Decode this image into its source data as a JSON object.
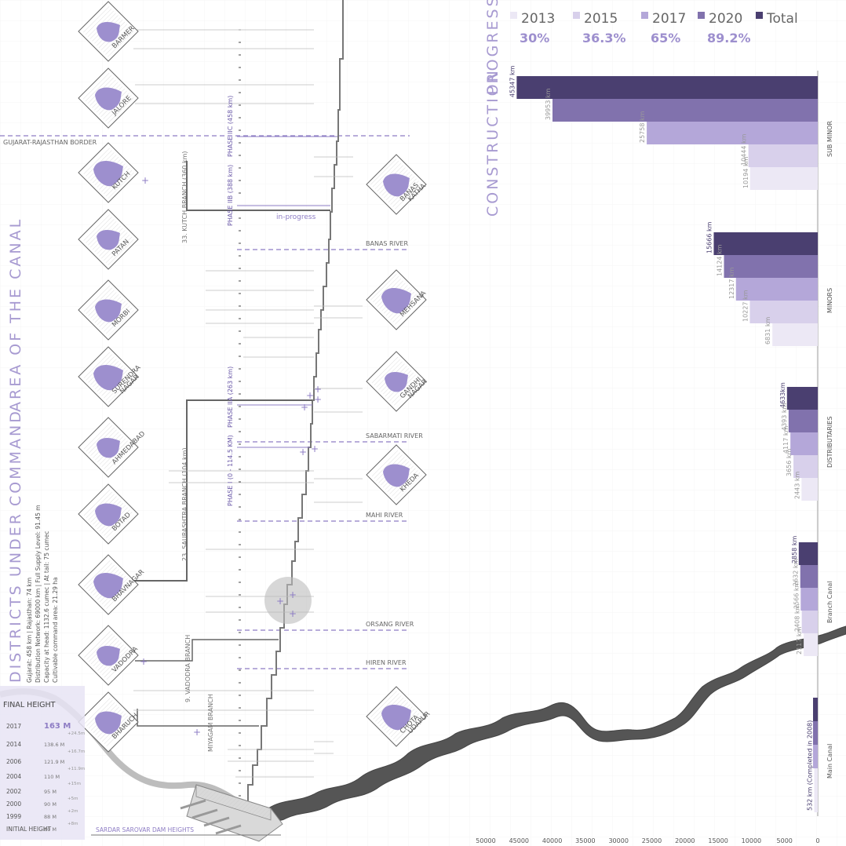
{
  "titles": {
    "command_area": [
      "DISTRICTS",
      "UNDER",
      "COMMAND",
      "AREA OF THE CANAL"
    ],
    "construction": [
      "CONSTRUCTION",
      "PROGRESS"
    ]
  },
  "canal_facts": [
    "Gujarat: 458 km | Rajasthan: 74 km",
    "Distribution Network: 69000 km | Full Supply Level: 91.45 m",
    "Capacity at head: 1132.6 cumec | At tail: 75 cumec",
    "Cultivable command area: 21.29 ha"
  ],
  "legend": [
    {
      "label": "2013",
      "percent": "30%",
      "color": "#ece8f5"
    },
    {
      "label": "2015",
      "percent": "36.3%",
      "color": "#d8d0eb"
    },
    {
      "label": "2017",
      "percent": "65%",
      "color": "#b4a7d9"
    },
    {
      "label": "2020",
      "percent": "89.2%",
      "color": "#8172ad"
    },
    {
      "label": "Total",
      "percent": "",
      "color": "#4a3f70"
    }
  ],
  "districts_left": [
    "BARMER",
    "JALORE",
    "KUTCH",
    "PATAN",
    "MORBI",
    "SURENDRA NAGAR",
    "AHMEDABAD",
    "BOTAD",
    "BHAVNAGAR",
    "VADODRA",
    "BHARUCH"
  ],
  "districts_right": [
    "BANAS KATHA",
    "MEHSANA",
    "GANDHI NAGAR",
    "KHEDA",
    "CHOTA UDAPUR"
  ],
  "rivers": [
    "BANAS RIVER",
    "SABARMATI RIVER",
    "MAHI RIVER",
    "ORSANG RIVER",
    "HIREN RIVER"
  ],
  "border_label": "GUJARAT-RAJASTHAN BORDER",
  "phases": [
    "PHASE IIC (458 km)",
    "PHASE IIB (388 km)",
    "PHASE IIA (263 km)",
    "PHASE I (0 - 114.5 KM)"
  ],
  "branches": [
    "33. KUTCH BRANCH (360 km)",
    "23. SAURASHTRA BRANCH (104 km)",
    "9. VADODRA BRANCH",
    "MIYAGAM BRANCH"
  ],
  "in_progress": "in-progress",
  "dam_label": "SARDAR SAROVAR DAM HEIGHTS",
  "dam_heights": {
    "title": "FINAL HEIGHT",
    "rows": [
      {
        "year": "2017",
        "height": "163 M",
        "inc": "+24.5m"
      },
      {
        "year": "2014",
        "height": "138.6 M",
        "inc": "+16.7m"
      },
      {
        "year": "2006",
        "height": "121.9 M",
        "inc": "+11.9m"
      },
      {
        "year": "2004",
        "height": "110 M",
        "inc": "+15m"
      },
      {
        "year": "2002",
        "height": "95 M",
        "inc": "+5m"
      },
      {
        "year": "2000",
        "height": "90 M",
        "inc": "+2m"
      },
      {
        "year": "1999",
        "height": "88 M",
        "inc": "+8m"
      },
      {
        "year": "INITIAL HEIGHT",
        "height": "80 M",
        "inc": ""
      }
    ]
  },
  "chart_data": {
    "type": "bar",
    "orientation": "horizontal",
    "x_ticks": [
      "50000",
      "45000",
      "40000",
      "35000",
      "30000",
      "25000",
      "20000",
      "15000",
      "10000",
      "5000",
      "0"
    ],
    "xlim": [
      0,
      50000
    ],
    "groups": [
      {
        "name": "SUB MINOR",
        "labels": [
          "45347 km",
          "39953 km",
          "25758 km",
          "10444 km",
          "10194 km"
        ],
        "values": [
          45347,
          39953,
          25758,
          10444,
          10194
        ]
      },
      {
        "name": "MINORS",
        "labels": [
          "15666 km",
          "14124 km",
          "12317 km",
          "10227 km",
          "6831 km"
        ],
        "values": [
          15666,
          14124,
          12317,
          10227,
          6831
        ]
      },
      {
        "name": "DISTRIBUTARIES",
        "labels": [
          "4633km",
          "4393 km",
          "4117 km",
          "3656 km",
          "2443 km"
        ],
        "values": [
          4633,
          4393,
          4117,
          3656,
          2443
        ]
      },
      {
        "name": "Branch Canal",
        "labels": [
          "2858 km",
          "2632 km",
          "2566 km",
          "2408 km",
          "2117 km"
        ],
        "values": [
          2858,
          2632,
          2566,
          2408,
          2117
        ]
      },
      {
        "name": "Main Canal",
        "labels": [
          "532 km (Completed in 2008)"
        ],
        "values": [
          532
        ]
      }
    ]
  }
}
